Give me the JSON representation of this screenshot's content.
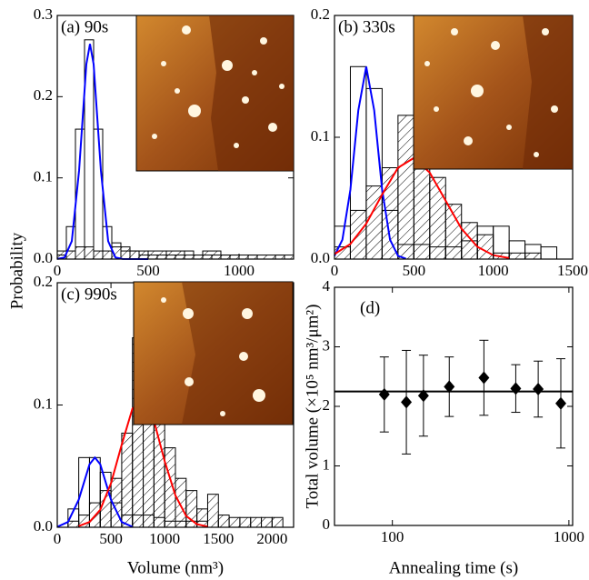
{
  "chart_data": [
    {
      "type": "histogram",
      "label": "(a) 90s",
      "ylabel": "Probability",
      "xlim": [
        0,
        1300
      ],
      "xticks": [
        0,
        500,
        1000
      ],
      "ylim": [
        0,
        0.3
      ],
      "yticks": [
        {
          "value": 0,
          "label": "0.0"
        },
        0.1,
        0.2,
        0.3
      ],
      "histograms": [
        {
          "style": "hatched",
          "bins": [
            0,
            100,
            200,
            300,
            400,
            500,
            600,
            700,
            800,
            900,
            1000,
            1100,
            1200,
            1300
          ],
          "values": [
            0.01,
            0.015,
            0.01,
            0.015,
            0.01,
            0.01,
            0.01,
            0.005,
            0.01,
            0.005,
            0.005,
            0.005,
            0.005
          ]
        },
        {
          "style": "open",
          "bins": [
            0,
            50,
            100,
            150,
            200,
            250,
            300,
            350,
            400,
            450,
            500,
            550,
            600,
            650,
            700,
            750,
            800,
            850,
            900,
            950,
            1000,
            1050,
            1100,
            1150,
            1200,
            1250,
            1300
          ],
          "values": [
            0.005,
            0.04,
            0.16,
            0.27,
            0.16,
            0.04,
            0.02,
            0.01,
            0.01,
            0.005,
            0.005,
            0.005,
            0.005,
            0.005,
            0.01,
            0.005,
            0.005,
            0.005,
            0.005,
            0.005,
            0,
            0.005,
            0,
            0,
            0.005,
            0
          ]
        }
      ],
      "curves": [
        {
          "color": "#0000ff",
          "x": [
            0,
            40,
            80,
            120,
            160,
            180,
            200,
            240,
            280,
            320,
            360,
            500
          ],
          "values": [
            0.0001,
            0.002,
            0.022,
            0.109,
            0.24,
            0.265,
            0.24,
            0.109,
            0.022,
            0.002,
            0.0001,
            0
          ]
        }
      ]
    },
    {
      "type": "histogram",
      "label": "(b) 330s",
      "xlim": [
        0,
        1500
      ],
      "xticks": [
        0,
        500,
        1000,
        1500
      ],
      "ylim": [
        0,
        0.2
      ],
      "yticks": [
        {
          "value": 0,
          "label": "0.0"
        },
        0.1,
        0.2
      ],
      "histograms": [
        {
          "style": "hatched",
          "bins": [
            0,
            100,
            200,
            300,
            400,
            500,
            600,
            700,
            800,
            900,
            1000,
            1100,
            1200,
            1300,
            1400
          ],
          "values": [
            0.01,
            0.04,
            0.06,
            0.075,
            0.118,
            0.08,
            0.067,
            0.045,
            0.03,
            0.02,
            0.005,
            0.005,
            0.005,
            0
          ]
        },
        {
          "style": "open",
          "bins": [
            0,
            100,
            200,
            300,
            400,
            500,
            600,
            700,
            800,
            900,
            1000,
            1100,
            1200,
            1300,
            1400
          ],
          "values": [
            0.027,
            0.158,
            0.14,
            0.04,
            0.012,
            0.012,
            0.01,
            0.01,
            0.015,
            0.027,
            0.027,
            0.015,
            0.012,
            0.01
          ]
        }
      ],
      "curves": [
        {
          "color": "#0000ff",
          "x": [
            0,
            50,
            100,
            150,
            200,
            250,
            300,
            350,
            400,
            450
          ],
          "values": [
            0.0027,
            0.0159,
            0.057,
            0.122,
            0.158,
            0.122,
            0.057,
            0.0159,
            0.0027,
            0.0003
          ]
        },
        {
          "color": "#ff0000",
          "x": [
            0,
            100,
            200,
            300,
            400,
            500,
            600,
            700,
            800,
            900,
            1000,
            1100
          ],
          "values": [
            0.0041,
            0.0124,
            0.029,
            0.053,
            0.075,
            0.083,
            0.071,
            0.048,
            0.025,
            0.0101,
            0.0032,
            0.0008
          ]
        }
      ]
    },
    {
      "type": "histogram",
      "label": "(c) 990s",
      "xlabel": "Volume (nm³)",
      "xlim": [
        0,
        2200
      ],
      "xticks": [
        0,
        500,
        1000,
        1500,
        2000
      ],
      "ylim": [
        0,
        0.2
      ],
      "yticks": [
        {
          "value": 0,
          "label": "0.0"
        },
        0.1,
        0.2
      ],
      "histograms": [
        {
          "style": "hatched",
          "bins": [
            0,
            100,
            200,
            300,
            400,
            500,
            600,
            700,
            800,
            900,
            1000,
            1100,
            1200,
            1300,
            1400,
            1500,
            1600,
            1700,
            1800,
            1900,
            2000,
            2100,
            2200
          ],
          "values": [
            0,
            0.005,
            0.01,
            0.02,
            0.03,
            0.04,
            0.077,
            0.155,
            0.09,
            0.085,
            0.065,
            0.04,
            0.03,
            0.015,
            0.027,
            0.01,
            0.008,
            0.008,
            0.008,
            0.008,
            0.008,
            0
          ]
        },
        {
          "style": "open",
          "bins": [
            0,
            100,
            200,
            300,
            400,
            500,
            600,
            700,
            800,
            900,
            1000,
            1100,
            1200,
            1300,
            1400,
            1500,
            1600,
            1700,
            1800,
            1900,
            2000,
            2100,
            2200
          ],
          "values": [
            0,
            0.015,
            0.057,
            0.057,
            0.045,
            0.02,
            0.01,
            0.01,
            0.01,
            0.008,
            0.005,
            0.005,
            0.005,
            0.005,
            0,
            0,
            0,
            0,
            0,
            0,
            0,
            0
          ]
        }
      ],
      "curves": [
        {
          "color": "#0000ff",
          "x": [
            0,
            100,
            200,
            300,
            350,
            400,
            500,
            600,
            700
          ],
          "values": [
            0.0004,
            0.0043,
            0.0225,
            0.0515,
            0.057,
            0.0515,
            0.0225,
            0.0043,
            0.0004
          ]
        },
        {
          "color": "#ff0000",
          "x": [
            200,
            300,
            400,
            500,
            600,
            700,
            800,
            900,
            1000,
            1100,
            1200,
            1300,
            1400
          ],
          "values": [
            0.001,
            0.0043,
            0.0143,
            0.036,
            0.0675,
            0.097,
            0.105,
            0.087,
            0.054,
            0.026,
            0.0092,
            0.0025,
            0.0005
          ]
        }
      ]
    },
    {
      "type": "scatter",
      "label": "(d)",
      "xlabel": "Annealing time (s)",
      "ylabel": "Total volume (×10⁵ nm³/μm²)",
      "xscale": "log",
      "xlim": [
        47,
        1050
      ],
      "xticks": [
        100,
        1000
      ],
      "ylim": [
        0,
        4
      ],
      "yticks": [
        0,
        1,
        2,
        3,
        4
      ],
      "x": [
        90,
        120,
        150,
        210,
        330,
        500,
        670,
        900
      ],
      "values": [
        2.2,
        2.07,
        2.18,
        2.33,
        2.48,
        2.3,
        2.29,
        2.05
      ],
      "errors": [
        0.63,
        0.87,
        0.68,
        0.5,
        0.63,
        0.4,
        0.47,
        0.75
      ],
      "hline": 2.25
    }
  ]
}
